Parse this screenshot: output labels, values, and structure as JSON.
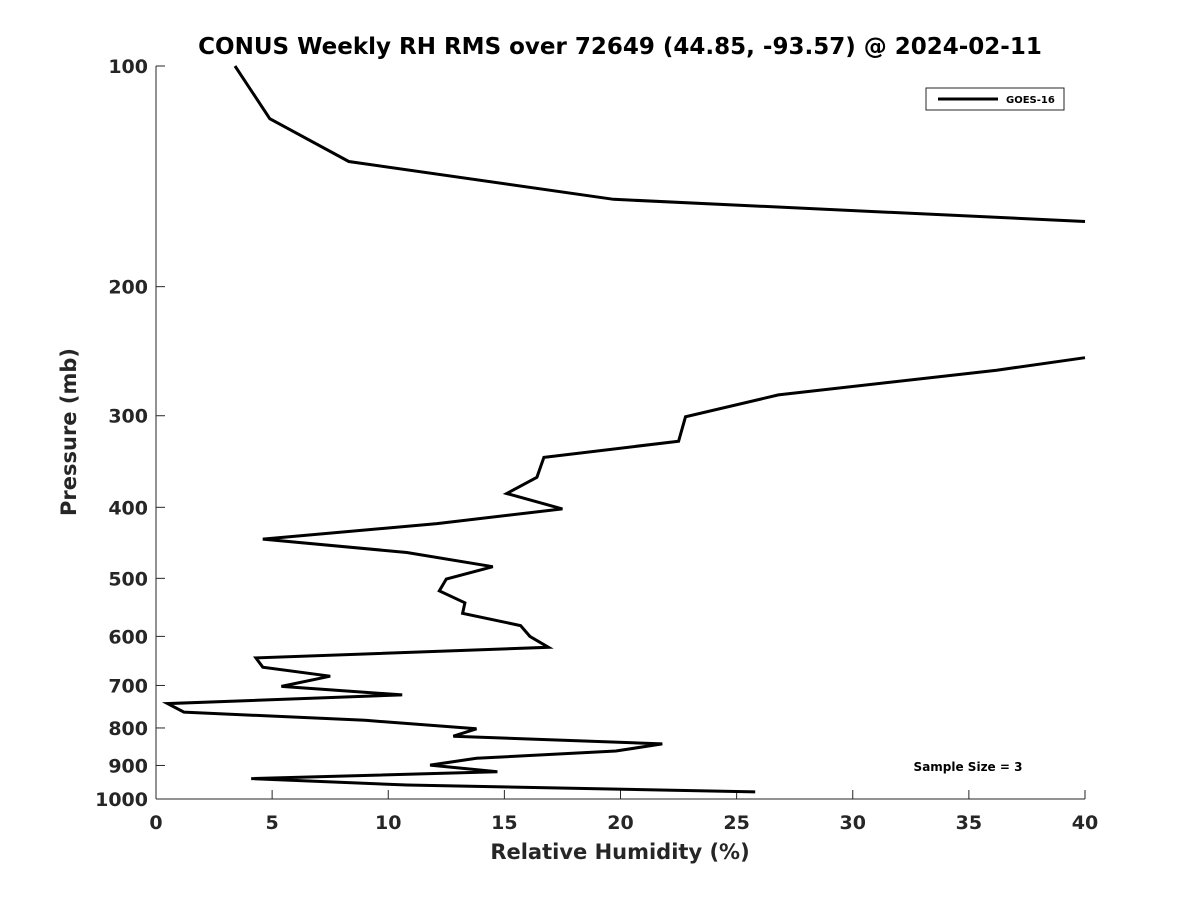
{
  "chart_data": {
    "type": "line",
    "title": "CONUS Weekly RH RMS over 72649 (44.85, -93.57) @ 2024-02-11",
    "xlabel": "Relative Humidity (%)",
    "ylabel": "Pressure (mb)",
    "xlim": [
      0,
      40
    ],
    "ylim": [
      100,
      1000
    ],
    "y_scale": "log",
    "y_reversed": true,
    "xticks": [
      0,
      5,
      10,
      15,
      20,
      25,
      30,
      35,
      40
    ],
    "yticks": [
      100,
      200,
      300,
      400,
      500,
      600,
      700,
      800,
      900,
      1000
    ],
    "grid": false,
    "legend_position": "top-right",
    "annotation": "Sample Size = 3",
    "line_color": "#000000",
    "series": [
      {
        "name": "GOES-16",
        "segments": [
          [
            {
              "x": 3.4,
              "y": 100
            },
            {
              "x": 4.9,
              "y": 118
            },
            {
              "x": 8.3,
              "y": 135
            },
            {
              "x": 19.7,
              "y": 152
            },
            {
              "x": 40.0,
              "y": 163
            }
          ],
          [
            {
              "x": 40.0,
              "y": 250
            },
            {
              "x": 36.2,
              "y": 260
            },
            {
              "x": 26.8,
              "y": 281
            },
            {
              "x": 22.8,
              "y": 301
            },
            {
              "x": 22.5,
              "y": 325
            },
            {
              "x": 16.7,
              "y": 342
            },
            {
              "x": 16.4,
              "y": 364
            },
            {
              "x": 15.1,
              "y": 383
            },
            {
              "x": 17.5,
              "y": 402
            },
            {
              "x": 12.1,
              "y": 421
            },
            {
              "x": 4.6,
              "y": 442
            },
            {
              "x": 10.8,
              "y": 461
            },
            {
              "x": 14.5,
              "y": 482
            },
            {
              "x": 12.5,
              "y": 501
            },
            {
              "x": 12.2,
              "y": 520
            },
            {
              "x": 13.3,
              "y": 540
            },
            {
              "x": 13.2,
              "y": 558
            },
            {
              "x": 15.7,
              "y": 580
            },
            {
              "x": 16.1,
              "y": 600
            },
            {
              "x": 16.9,
              "y": 621
            },
            {
              "x": 4.3,
              "y": 642
            },
            {
              "x": 4.6,
              "y": 661
            },
            {
              "x": 7.5,
              "y": 680
            },
            {
              "x": 5.4,
              "y": 702
            },
            {
              "x": 10.6,
              "y": 721
            },
            {
              "x": 0.5,
              "y": 741
            },
            {
              "x": 1.2,
              "y": 761
            },
            {
              "x": 9.0,
              "y": 781
            },
            {
              "x": 13.8,
              "y": 802
            },
            {
              "x": 12.8,
              "y": 821
            },
            {
              "x": 21.8,
              "y": 841
            },
            {
              "x": 19.8,
              "y": 860
            },
            {
              "x": 13.8,
              "y": 880
            },
            {
              "x": 11.8,
              "y": 899
            },
            {
              "x": 14.7,
              "y": 918
            },
            {
              "x": 4.1,
              "y": 938
            },
            {
              "x": 10.8,
              "y": 957
            },
            {
              "x": 25.8,
              "y": 978
            }
          ]
        ]
      }
    ]
  }
}
